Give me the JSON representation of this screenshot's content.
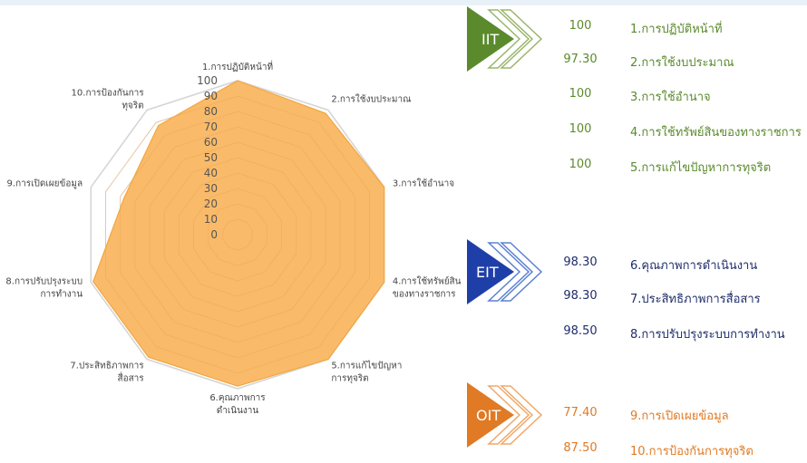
{
  "chart_data": {
    "type": "radar",
    "categories": [
      "1.การปฏิบัติหน้าที่",
      "2.การใช้งบประมาณ",
      "3.การใช้อำนาจ",
      "4.การใช้ทรัพย์สินของทางราชการ",
      "5.การแก้ไขปัญหาการทุจริต",
      "6.คุณภาพการดำเนินงาน",
      "7.ประสิทธิภาพการสื่อสาร",
      "8.การปรับปรุงระบบการทำงาน",
      "9.การเปิดเผยข้อมูล",
      "10.การป้องกันการทุจริต"
    ],
    "category_label_lines": [
      [
        "1.การปฏิบัติหน้าที่"
      ],
      [
        "2.การใช้งบประมาณ"
      ],
      [
        "3.การใช้อำนาจ"
      ],
      [
        "4.การใช้ทรัพย์สิน",
        "ของทางราชการ"
      ],
      [
        "5.การแก้ไขปัญหา",
        "การทุจริต"
      ],
      [
        "6.คุณภาพการ",
        "ดำเนินงาน"
      ],
      [
        "7.ประสิทธิภาพการ",
        "สื่อสาร"
      ],
      [
        "8.การปรับปรุงระบบ",
        "การทำงาน"
      ],
      [
        "9.การเปิดเผยข้อมูล"
      ],
      [
        "10.การป้องกันการ",
        "ทุจริต"
      ]
    ],
    "values": [
      100,
      97.3,
      100,
      100,
      100,
      98.3,
      98.3,
      98.5,
      77.4,
      87.5
    ],
    "rlim": [
      0,
      100
    ],
    "ticks": [
      0,
      10,
      20,
      30,
      40,
      50,
      60,
      70,
      80,
      90,
      100
    ],
    "fill_color": "#f9b55c",
    "grid": true
  },
  "groups": [
    {
      "badge": "IIT",
      "color": "#5a8a2c",
      "items": [
        {
          "value": "100",
          "label": "1.การปฏิบัติหน้าที่"
        },
        {
          "value": "97.30",
          "label": "2.การใช้งบประมาณ"
        },
        {
          "value": "100",
          "label": "3.การใช้อำนาจ"
        },
        {
          "value": "100",
          "label": "4.การใช้ทรัพย์สินของทางราชการ"
        },
        {
          "value": "100",
          "label": "5.การแก้ไขปัญหาการทุจริต"
        }
      ]
    },
    {
      "badge": "EIT",
      "color": "#1f3fa8",
      "items": [
        {
          "value": "98.30",
          "label": "6.คุณภาพการดำเนินงาน"
        },
        {
          "value": "98.30",
          "label": "7.ประสิทธิภาพการสื่อสาร"
        },
        {
          "value": "98.50",
          "label": "8.การปรับปรุงระบบการทำงาน"
        }
      ]
    },
    {
      "badge": "OIT",
      "color": "#e07a24",
      "items": [
        {
          "value": "77.40",
          "label": "9.การเปิดเผยข้อมูล"
        },
        {
          "value": "87.50",
          "label": "10.การป้องกันการทุจริต"
        }
      ]
    }
  ]
}
